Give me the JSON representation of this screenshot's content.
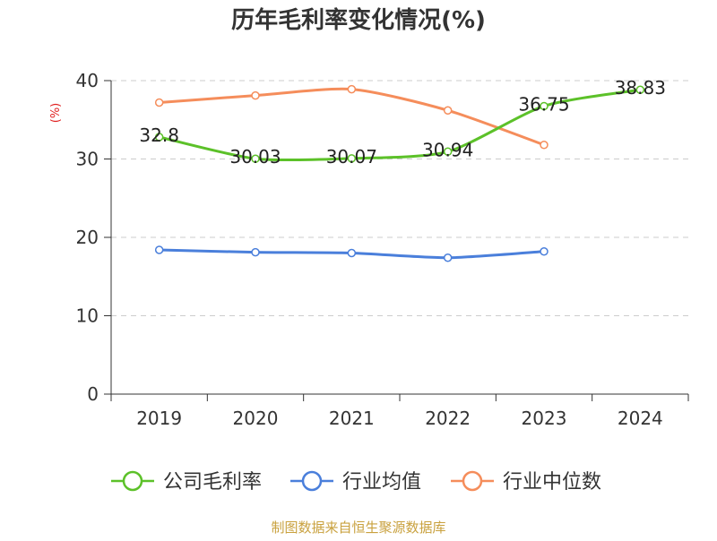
{
  "chart_data": {
    "type": "line",
    "title": "历年毛利率变化情况(%)",
    "ylabel": "(%)",
    "xlabel": "",
    "categories": [
      "2019",
      "2020",
      "2021",
      "2022",
      "2023",
      "2024"
    ],
    "ylim": [
      0,
      40
    ],
    "yticks": [
      0,
      10,
      20,
      30,
      40
    ],
    "grid": "horizontal-dashed",
    "legend_position": "bottom-center",
    "series": [
      {
        "name": "公司毛利率",
        "color": "#5cc129",
        "values": [
          32.8,
          30.03,
          30.07,
          30.94,
          36.75,
          38.83
        ],
        "labels": [
          "32.8",
          "30.03",
          "30.07",
          "30.94",
          "36.75",
          "38.83"
        ]
      },
      {
        "name": "行业均值",
        "color": "#4a7fdb",
        "values": [
          18.4,
          18.1,
          18.0,
          17.4,
          18.2,
          null
        ]
      },
      {
        "name": "行业中位数",
        "color": "#f58d5b",
        "values": [
          37.2,
          38.1,
          38.9,
          36.2,
          31.8,
          null
        ]
      }
    ],
    "source": "制图数据来自恒生聚源数据库",
    "source_color": "#c9a13e",
    "ylabel_color": "#e02020"
  }
}
